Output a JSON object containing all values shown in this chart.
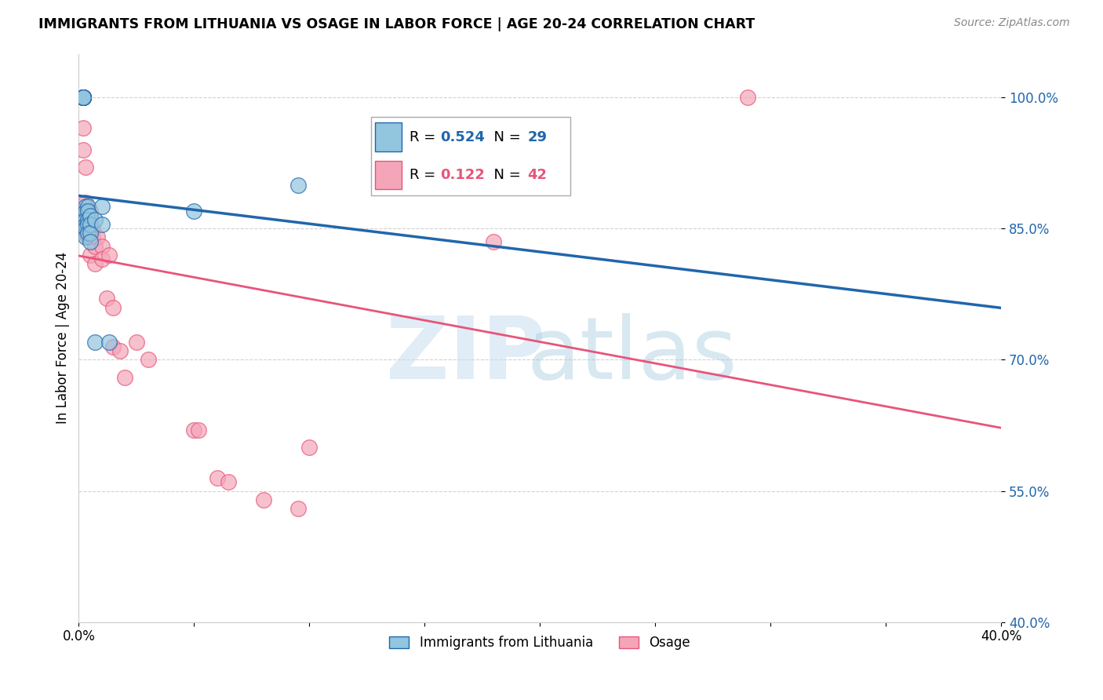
{
  "title": "IMMIGRANTS FROM LITHUANIA VS OSAGE IN LABOR FORCE | AGE 20-24 CORRELATION CHART",
  "source": "Source: ZipAtlas.com",
  "ylabel": "In Labor Force | Age 20-24",
  "xmin": 0.0,
  "xmax": 0.4,
  "ymin": 0.4,
  "ymax": 1.05,
  "yticks": [
    0.4,
    0.55,
    0.7,
    0.85,
    1.0
  ],
  "ytick_labels": [
    "40.0%",
    "55.0%",
    "70.0%",
    "85.0%",
    "100.0%"
  ],
  "xticks": [
    0.0,
    0.05,
    0.1,
    0.15,
    0.2,
    0.25,
    0.3,
    0.35,
    0.4
  ],
  "xtick_labels": [
    "0.0%",
    "",
    "",
    "",
    "",
    "",
    "",
    "",
    "40.0%"
  ],
  "blue_color": "#92c5de",
  "pink_color": "#f4a6b8",
  "blue_line_color": "#2166ac",
  "pink_line_color": "#e8547a",
  "blue_r": "0.524",
  "blue_n": "29",
  "pink_r": "0.122",
  "pink_n": "42",
  "legend_blue_label": "Immigrants from Lithuania",
  "legend_pink_label": "Osage",
  "lithuania_x": [
    0.002,
    0.002,
    0.002,
    0.002,
    0.002,
    0.002,
    0.002,
    0.003,
    0.003,
    0.003,
    0.003,
    0.003,
    0.003,
    0.004,
    0.004,
    0.004,
    0.004,
    0.004,
    0.005,
    0.005,
    0.005,
    0.005,
    0.007,
    0.007,
    0.01,
    0.01,
    0.013,
    0.05,
    0.095
  ],
  "lithuania_y": [
    1.0,
    1.0,
    1.0,
    1.0,
    1.0,
    1.0,
    1.0,
    0.875,
    0.87,
    0.86,
    0.855,
    0.85,
    0.84,
    0.875,
    0.87,
    0.86,
    0.855,
    0.845,
    0.865,
    0.855,
    0.845,
    0.835,
    0.86,
    0.72,
    0.875,
    0.855,
    0.72,
    0.87,
    0.9
  ],
  "osage_x": [
    0.002,
    0.002,
    0.002,
    0.002,
    0.002,
    0.002,
    0.003,
    0.003,
    0.003,
    0.003,
    0.003,
    0.004,
    0.004,
    0.004,
    0.005,
    0.005,
    0.005,
    0.005,
    0.006,
    0.006,
    0.007,
    0.007,
    0.008,
    0.01,
    0.01,
    0.012,
    0.013,
    0.015,
    0.015,
    0.018,
    0.02,
    0.025,
    0.03,
    0.05,
    0.052,
    0.06,
    0.065,
    0.08,
    0.095,
    0.1,
    0.29,
    0.18
  ],
  "osage_y": [
    1.0,
    1.0,
    1.0,
    1.0,
    0.965,
    0.94,
    0.92,
    0.88,
    0.87,
    0.855,
    0.845,
    0.87,
    0.855,
    0.84,
    0.87,
    0.86,
    0.84,
    0.82,
    0.85,
    0.84,
    0.83,
    0.81,
    0.84,
    0.83,
    0.815,
    0.77,
    0.82,
    0.76,
    0.715,
    0.71,
    0.68,
    0.72,
    0.7,
    0.62,
    0.62,
    0.565,
    0.56,
    0.54,
    0.53,
    0.6,
    1.0,
    0.835
  ]
}
